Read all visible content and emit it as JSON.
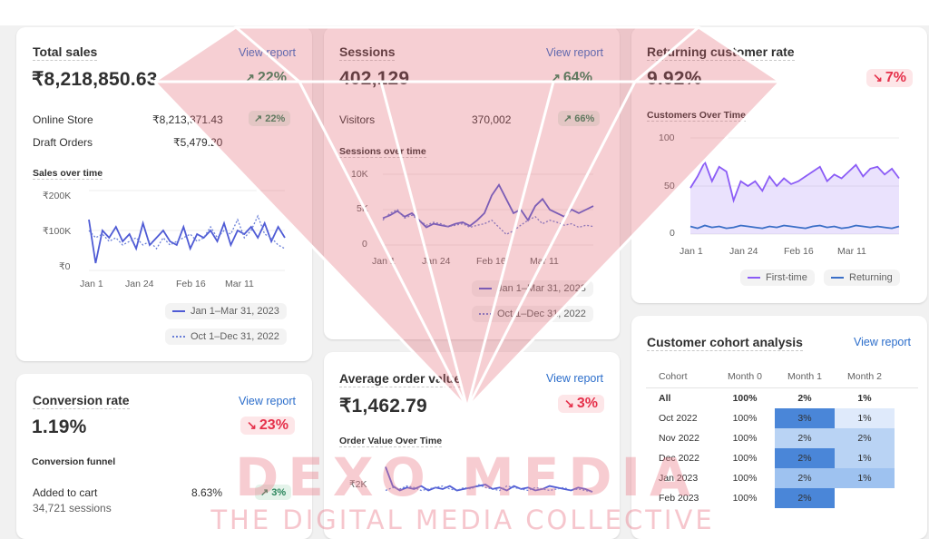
{
  "total_sales": {
    "title": "Total sales",
    "view_report": "View report",
    "value": "₹8,218,850.63",
    "change": "22%",
    "rows": [
      {
        "label": "Online Store",
        "value": "₹8,213,371.43",
        "change": "22%"
      },
      {
        "label": "Draft Orders",
        "value": "₹5,479.20"
      }
    ],
    "chart_title": "Sales over time",
    "legend": [
      "Jan 1–Mar 31, 2023",
      "Oct 1–Dec 31, 2022"
    ]
  },
  "sessions": {
    "title": "Sessions",
    "view_report": "View report",
    "value": "402,129",
    "change": "64%",
    "rows": [
      {
        "label": "Visitors",
        "value": "370,002",
        "change": "66%"
      }
    ],
    "chart_title": "Sessions over time",
    "legend": [
      "Jan 1–Mar 31, 2023",
      "Oct 1–Dec 31, 2022"
    ]
  },
  "returning": {
    "title": "Returning customer rate",
    "value": "9.92%",
    "change": "7%",
    "chart_title": "Customers Over Time",
    "legend": [
      "First-time",
      "Returning"
    ]
  },
  "conversion": {
    "title": "Conversion rate",
    "view_report": "View report",
    "value": "1.19%",
    "change": "23%",
    "funnel_title": "Conversion funnel",
    "funnel_rows": [
      {
        "label": "Added to cart",
        "sub": "34,721 sessions",
        "value": "8.63%",
        "change": "3%"
      }
    ]
  },
  "aov": {
    "title": "Average order value",
    "view_report": "View report",
    "value": "₹1,462.79",
    "change": "3%",
    "chart_title": "Order Value Over Time"
  },
  "cohort": {
    "title": "Customer cohort analysis",
    "view_report": "View report",
    "headers": [
      "Cohort",
      "Month 0",
      "Month 1",
      "Month 2"
    ],
    "rows": [
      {
        "label": "All",
        "m0": "100%",
        "m1": "2%",
        "m2": "1%"
      },
      {
        "label": "Oct 2022",
        "m0": "100%",
        "m1": "3%",
        "m2": "1%"
      },
      {
        "label": "Nov 2022",
        "m0": "100%",
        "m1": "2%",
        "m2": "2%"
      },
      {
        "label": "Dec 2022",
        "m0": "100%",
        "m1": "2%",
        "m2": "1%"
      },
      {
        "label": "Jan 2023",
        "m0": "100%",
        "m1": "2%",
        "m2": "1%"
      },
      {
        "label": "Feb 2023",
        "m0": "100%",
        "m1": "2%",
        "m2": ""
      }
    ]
  },
  "watermark": {
    "title": "DEXO MEDIA",
    "subtitle": "THE DIGITAL MEDIA COLLECTIVE"
  },
  "chart_data": [
    {
      "type": "line",
      "title": "Sales over time",
      "x_ticks": [
        "Jan 1",
        "Jan 24",
        "Feb 16",
        "Mar 11"
      ],
      "y_ticks": [
        "₹200K",
        "₹100K",
        "₹0"
      ],
      "ylim": [
        0,
        220000
      ],
      "series": [
        {
          "name": "Jan 1–Mar 31, 2023",
          "style": "solid",
          "color": "#4f5bd5",
          "values": [
            140000,
            20000,
            110000,
            90000,
            120000,
            80000,
            100000,
            60000,
            130000,
            70000,
            90000,
            110000,
            80000,
            70000,
            120000,
            60000,
            100000,
            90000,
            110000,
            80000,
            130000,
            70000,
            110000,
            100000,
            120000,
            90000,
            130000,
            80000,
            120000,
            90000
          ]
        },
        {
          "name": "Oct 1–Dec 31, 2022",
          "style": "dotted",
          "color": "#6a7fd8",
          "values": [
            110000,
            90000,
            100000,
            80000,
            90000,
            70000,
            80000,
            90000,
            70000,
            80000,
            60000,
            90000,
            70000,
            80000,
            90000,
            100000,
            80000,
            90000,
            120000,
            90000,
            110000,
            100000,
            140000,
            90000,
            110000,
            150000,
            100000,
            90000,
            70000,
            60000
          ]
        }
      ]
    },
    {
      "type": "line",
      "title": "Sessions over time",
      "x_ticks": [
        "Jan 1",
        "Jan 24",
        "Feb 16",
        "Mar 11"
      ],
      "y_ticks": [
        "10K",
        "5K",
        "0"
      ],
      "ylim": [
        0,
        10000
      ],
      "series": [
        {
          "name": "Jan 1–Mar 31, 2023",
          "style": "solid",
          "color": "#4f5bd5",
          "values": [
            3800,
            4200,
            4800,
            4000,
            4500,
            3500,
            2500,
            3000,
            2800,
            2600,
            3000,
            3200,
            2700,
            3500,
            4500,
            7000,
            8500,
            6500,
            4500,
            5000,
            3500,
            5500,
            6500,
            5000,
            4500,
            4000,
            5000,
            4500,
            5000,
            5500
          ]
        },
        {
          "name": "Oct 1–Dec 31, 2022",
          "style": "dotted",
          "color": "#6a7fd8",
          "values": [
            3500,
            4500,
            5000,
            3800,
            4200,
            3500,
            2800,
            3200,
            3000,
            2600,
            2800,
            3000,
            2500,
            2800,
            3000,
            3500,
            2500,
            1500,
            2000,
            2800,
            3500,
            4000,
            3000,
            3500,
            3200,
            2800,
            3000,
            2500,
            2800,
            2600
          ]
        }
      ]
    },
    {
      "type": "area",
      "title": "Customers Over Time",
      "x_ticks": [
        "Jan 1",
        "Jan 24",
        "Feb 16",
        "Mar 11"
      ],
      "y_ticks": [
        "100",
        "50",
        "0"
      ],
      "ylim": [
        0,
        100
      ],
      "series": [
        {
          "name": "First-time",
          "color": "#8b5cf6",
          "values": [
            48,
            60,
            75,
            55,
            70,
            65,
            35,
            55,
            50,
            55,
            45,
            60,
            50,
            58,
            52,
            55,
            60,
            65,
            70,
            55,
            62,
            58,
            65,
            72,
            60,
            68,
            70,
            62,
            68,
            58
          ]
        },
        {
          "name": "Returning",
          "color": "#3b6fc7",
          "values": [
            8,
            6,
            9,
            7,
            8,
            6,
            7,
            9,
            8,
            7,
            6,
            8,
            7,
            9,
            8,
            7,
            6,
            8,
            9,
            7,
            8,
            6,
            7,
            9,
            8,
            7,
            8,
            7,
            6,
            8
          ]
        }
      ]
    },
    {
      "type": "line",
      "title": "Order Value Over Time",
      "y_ticks": [
        "₹2K"
      ],
      "series": [
        {
          "name": "Jan 1–Mar 31, 2023",
          "style": "solid",
          "color": "#4f5bd5",
          "values": [
            2800,
            1500,
            1200,
            1400,
            1300,
            1500,
            1200,
            1400,
            1300,
            1500,
            1200,
            1300,
            1400,
            1500,
            1600,
            1300,
            1400,
            1200,
            1500,
            1300,
            1400,
            1200,
            1300,
            1500,
            1400,
            1300,
            1200,
            1400,
            1300,
            1100
          ]
        },
        {
          "name": "Oct 1–Dec 31, 2022",
          "style": "dotted",
          "color": "#6a7fd8",
          "values": [
            1200,
            1400,
            1300,
            1500,
            1400,
            1200,
            1300,
            1400,
            1500,
            1300,
            1200,
            1400,
            1300,
            1600,
            1400,
            1300,
            1200,
            1500,
            1400,
            1300,
            1200,
            1400,
            1300,
            1200,
            1300,
            1400,
            1200,
            1300,
            1200,
            1100
          ]
        }
      ]
    }
  ]
}
